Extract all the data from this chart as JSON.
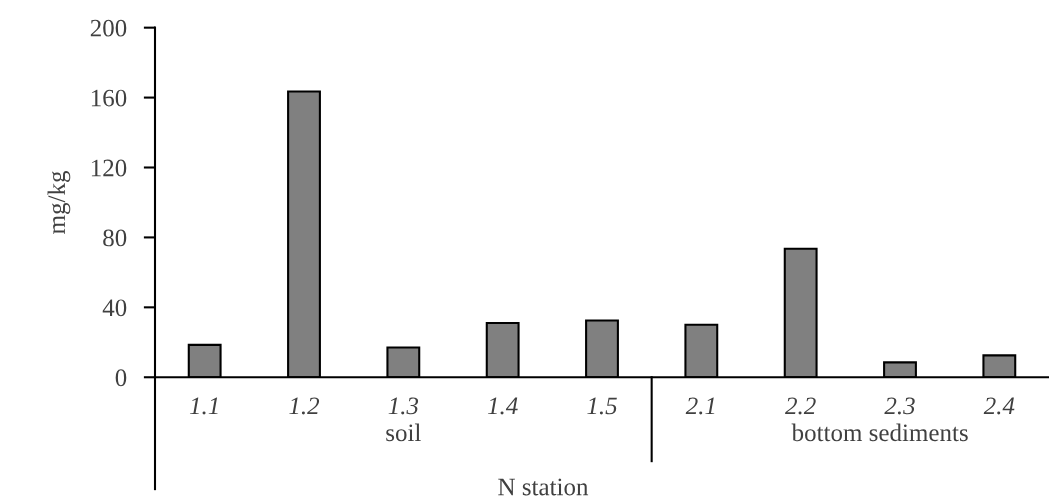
{
  "chart_data": {
    "type": "bar",
    "categories": [
      "1.1",
      "1.2",
      "1.3",
      "1.4",
      "1.5",
      "2.1",
      "2.2",
      "2.3",
      "2.4"
    ],
    "values": [
      18.5,
      163.5,
      17,
      31,
      32.5,
      30,
      73.5,
      8.5,
      12.5
    ],
    "color": "#808080",
    "xlabel": "N station",
    "ylabel": "mg/kg",
    "annotations": [
      "soil",
      "bottom sediments"
    ],
    "ylim": [
      0,
      200
    ],
    "yticks": [
      0,
      40,
      80,
      120,
      160,
      200
    ],
    "grid": false,
    "legend": false
  }
}
